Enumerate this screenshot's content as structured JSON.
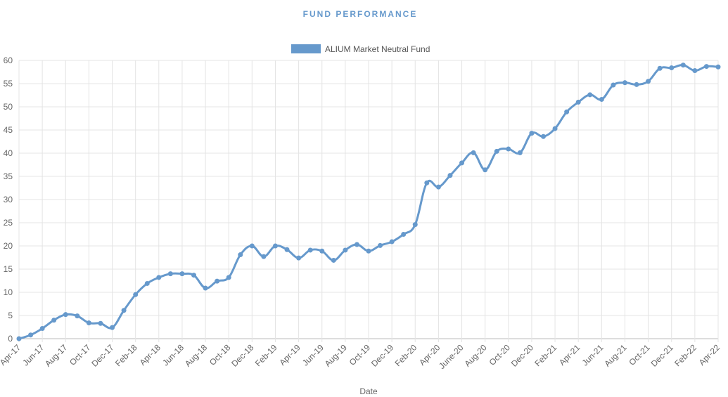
{
  "chart_data": {
    "type": "line",
    "title": "FUND PERFORMANCE",
    "xlabel": "Date",
    "ylabel": "",
    "ylim": [
      0,
      60
    ],
    "y_ticks": [
      0,
      5,
      10,
      15,
      20,
      25,
      30,
      35,
      40,
      45,
      50,
      55,
      60
    ],
    "grid": true,
    "legend_position": "top",
    "x_tick_labels": [
      "Apr-17",
      "Jun-17",
      "Aug-17",
      "Oct-17",
      "Dec-17",
      "Feb-18",
      "Apr-18",
      "Jun-18",
      "Aug-18",
      "Oct-18",
      "Dec-18",
      "Feb-19",
      "Apr-19",
      "Jun-19",
      "Aug-19",
      "Oct-19",
      "Dec-19",
      "Feb-20",
      "Apr-20",
      "June-20",
      "Aug-20",
      "Oct-20",
      "Dec-20",
      "Feb-21",
      "Apr-21",
      "Jun-21",
      "Aug-21",
      "Oct-21",
      "Dec-21",
      "Feb-22",
      "Apr-22"
    ],
    "series": [
      {
        "name": "ALIUM Market Neutral Fund",
        "color": "#6699cc",
        "values": [
          0,
          0.8,
          2.2,
          4.0,
          5.2,
          4.9,
          3.4,
          3.3,
          2.4,
          6.1,
          9.5,
          11.9,
          13.2,
          14.0,
          14.0,
          13.7,
          10.9,
          12.4,
          13.2,
          18.1,
          20.0,
          17.7,
          20.0,
          19.2,
          17.4,
          19.1,
          18.9,
          16.9,
          19.1,
          20.3,
          18.9,
          20.1,
          20.9,
          22.5,
          24.6,
          33.6,
          32.7,
          35.2,
          37.9,
          40.1,
          36.4,
          40.4,
          40.9,
          40.1,
          44.3,
          43.6,
          45.3,
          48.9,
          51.0,
          52.6,
          51.6,
          54.7,
          55.2,
          54.8,
          55.5,
          58.3,
          58.4,
          59.0,
          57.8,
          58.7,
          58.6
        ]
      }
    ]
  }
}
